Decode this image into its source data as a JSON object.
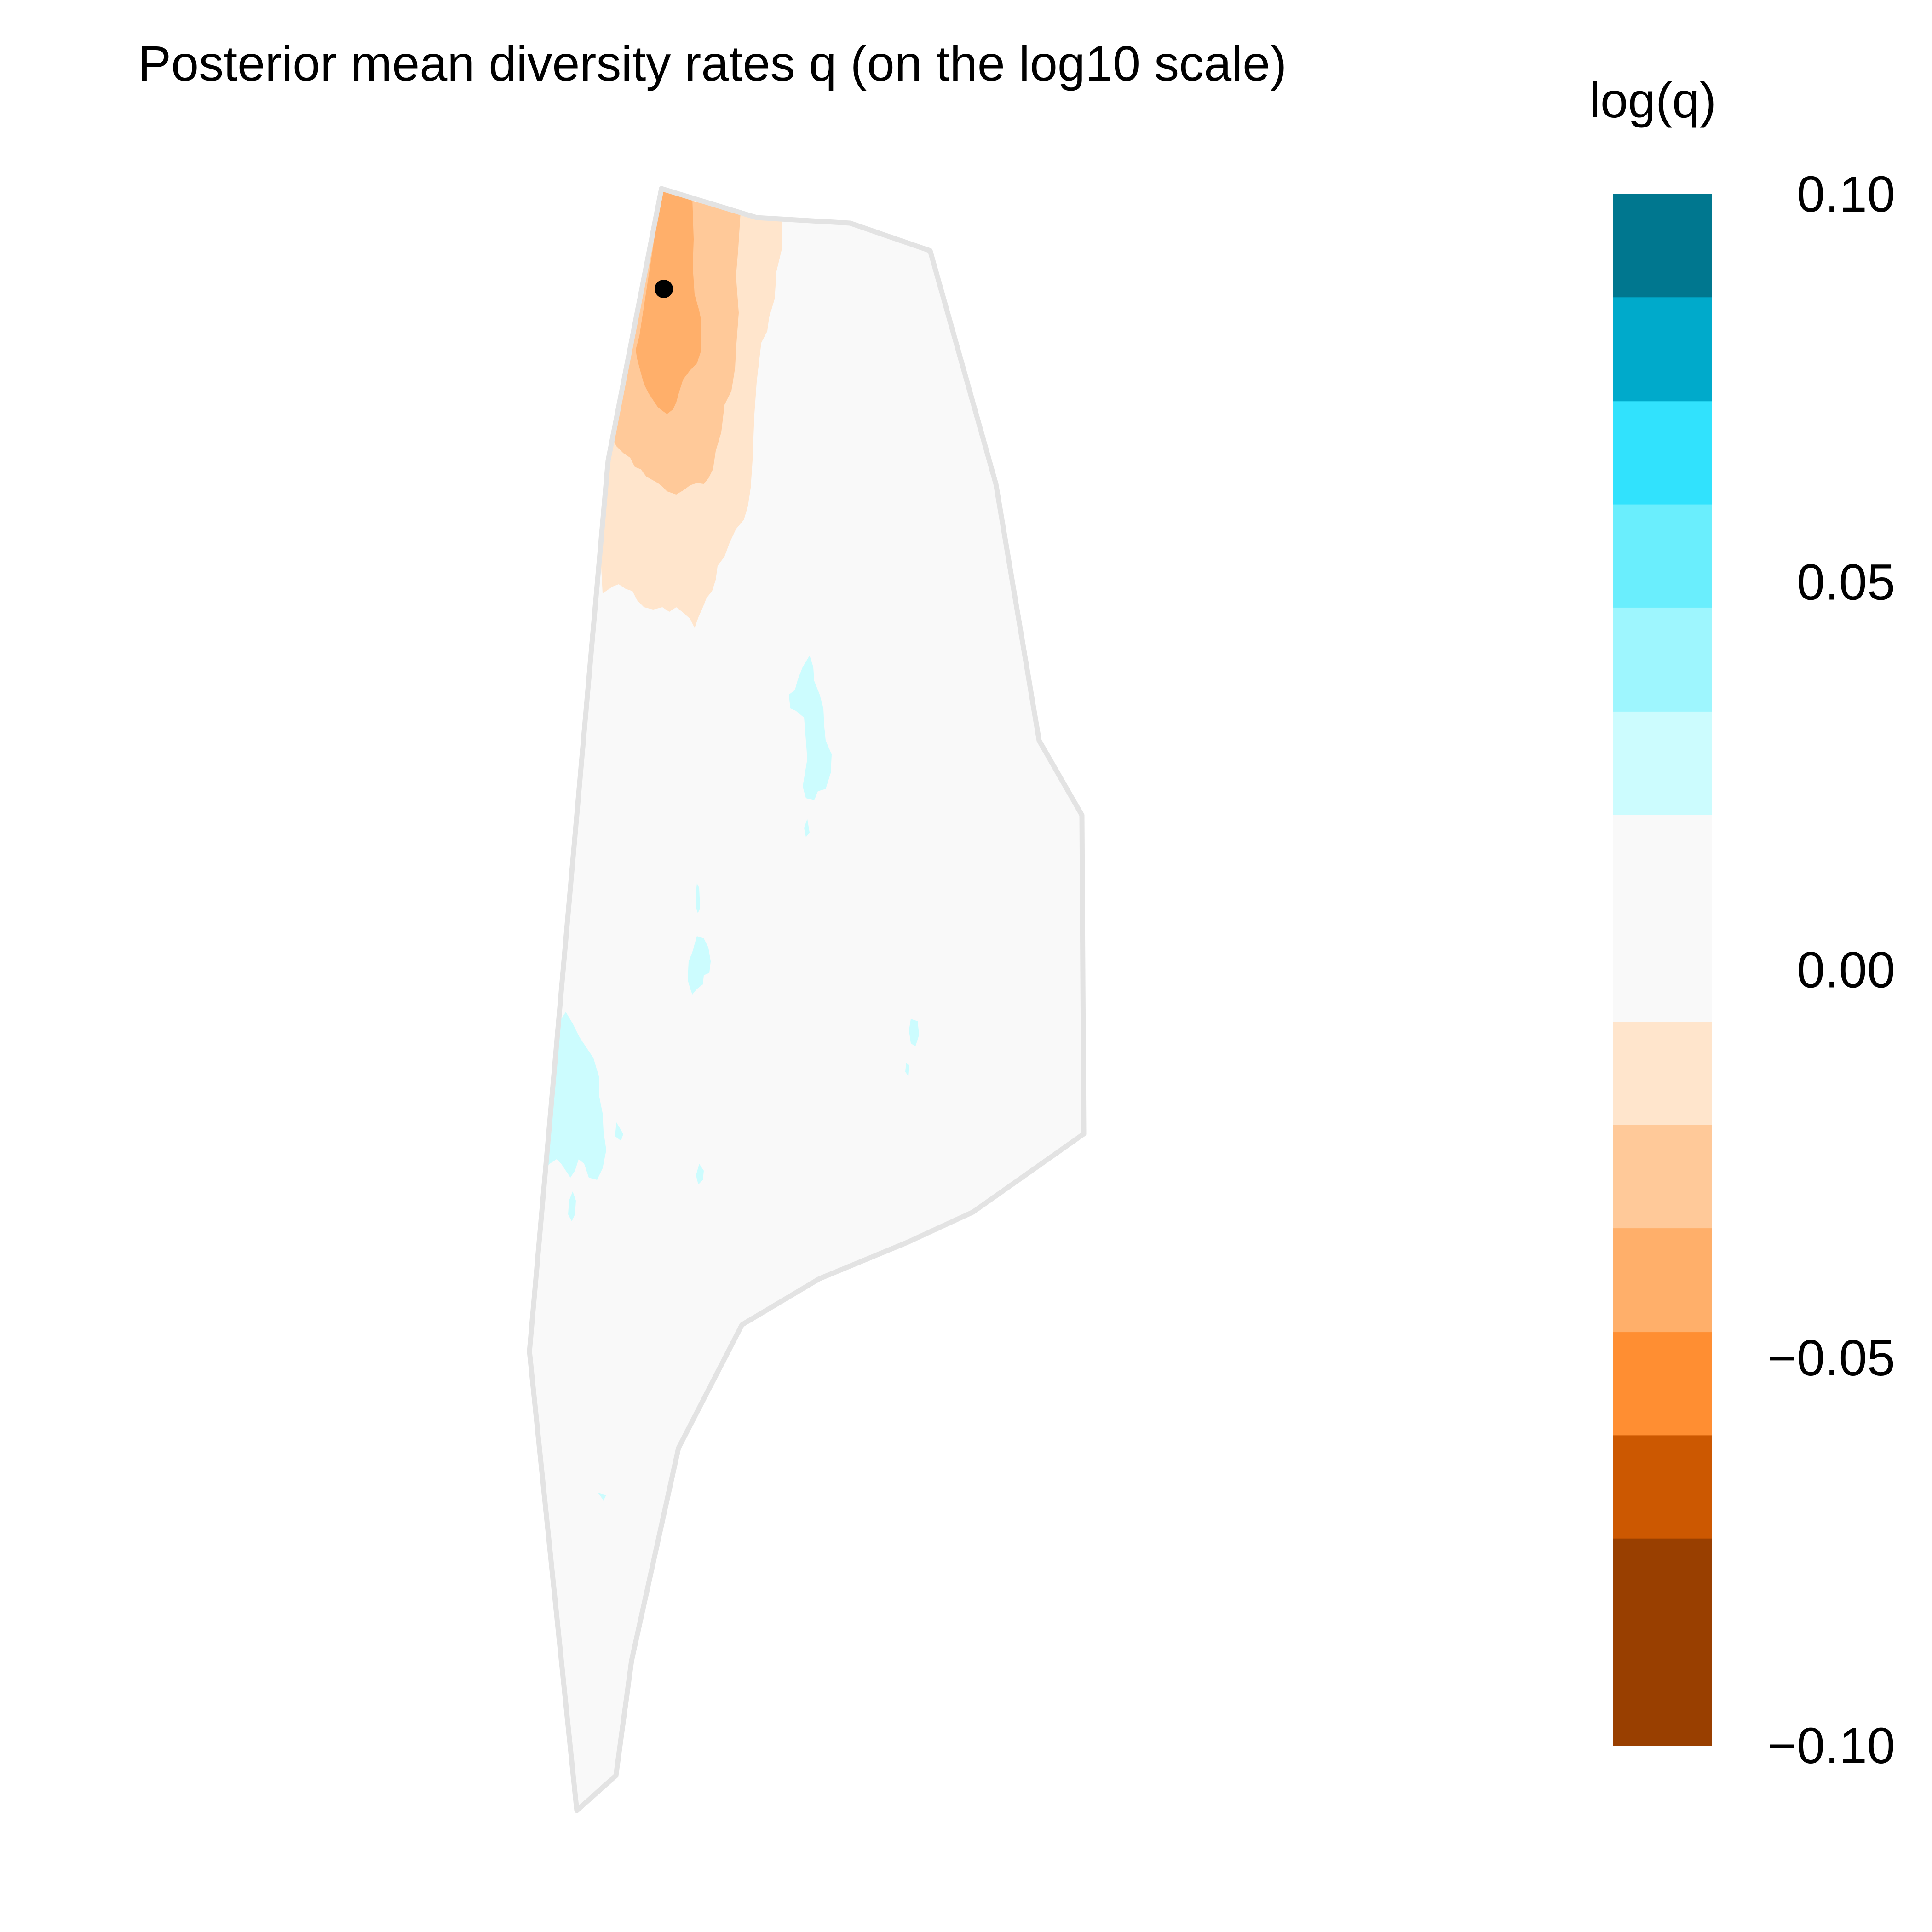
{
  "title": "Posterior mean diversity rates q (on the log10 scale)",
  "legend": {
    "title": "log(q)",
    "tick_labels": [
      "0.10",
      "0.05",
      "0.00",
      "−0.05",
      "−0.10"
    ],
    "tick_values": [
      0.1,
      0.05,
      0.0,
      -0.05,
      -0.1
    ],
    "color_bins": [
      {
        "from": 0.0867,
        "to": 0.1,
        "color": "#00778F"
      },
      {
        "from": 0.0733,
        "to": 0.0867,
        "color": "#00AACB"
      },
      {
        "from": 0.06,
        "to": 0.0733,
        "color": "#31E2FD"
      },
      {
        "from": 0.0467,
        "to": 0.06,
        "color": "#6AEEFD"
      },
      {
        "from": 0.0333,
        "to": 0.0467,
        "color": "#9EF6FE"
      },
      {
        "from": 0.02,
        "to": 0.0333,
        "color": "#CCFCFE"
      },
      {
        "from": -0.0067,
        "to": 0.02,
        "color": "#F9F9F9"
      },
      {
        "from": -0.02,
        "to": -0.0067,
        "color": "#FFE5CC"
      },
      {
        "from": -0.0333,
        "to": -0.02,
        "color": "#FFC999"
      },
      {
        "from": -0.0467,
        "to": -0.0333,
        "color": "#FFAF6A"
      },
      {
        "from": -0.06,
        "to": -0.0467,
        "color": "#FF8E32"
      },
      {
        "from": -0.0733,
        "to": -0.06,
        "color": "#CC5801"
      },
      {
        "from": -0.1,
        "to": -0.0733,
        "color": "#993F00"
      }
    ]
  },
  "colors": {
    "outline": "#E3E3E3",
    "background_fill": "#F9F9F9",
    "point": "#000000"
  }
}
